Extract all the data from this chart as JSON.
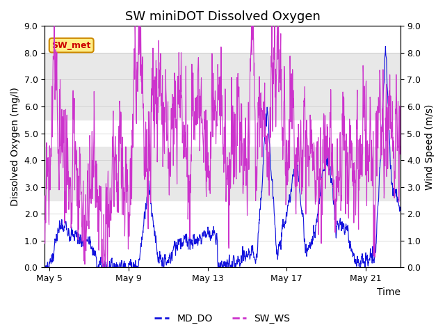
{
  "title": "SW miniDOT Dissolved Oxygen",
  "ylabel_left": "Dissolved Oxygen (mg/l)",
  "ylabel_right": "Wind Speed (m/s)",
  "xlabel": "Time",
  "ylim": [
    0.0,
    9.0
  ],
  "yticks": [
    0.0,
    1.0,
    2.0,
    3.0,
    4.0,
    5.0,
    6.0,
    7.0,
    8.0,
    9.0
  ],
  "x_tick_labels": [
    "May 5",
    "May 9",
    "May 13",
    "May 17",
    "May 21"
  ],
  "line1_color": "#1010dd",
  "line2_color": "#cc33cc",
  "line1_label": "MD_DO",
  "line2_label": "SW_WS",
  "box_label": "SW_met",
  "box_bg": "#ffee88",
  "box_edge": "#cc8800",
  "box_text_color": "#cc0000",
  "background_color": "#ffffff",
  "grid_color": "#cccccc",
  "band_color": "#e8e8e8",
  "title_fontsize": 13,
  "label_fontsize": 10,
  "tick_fontsize": 9
}
